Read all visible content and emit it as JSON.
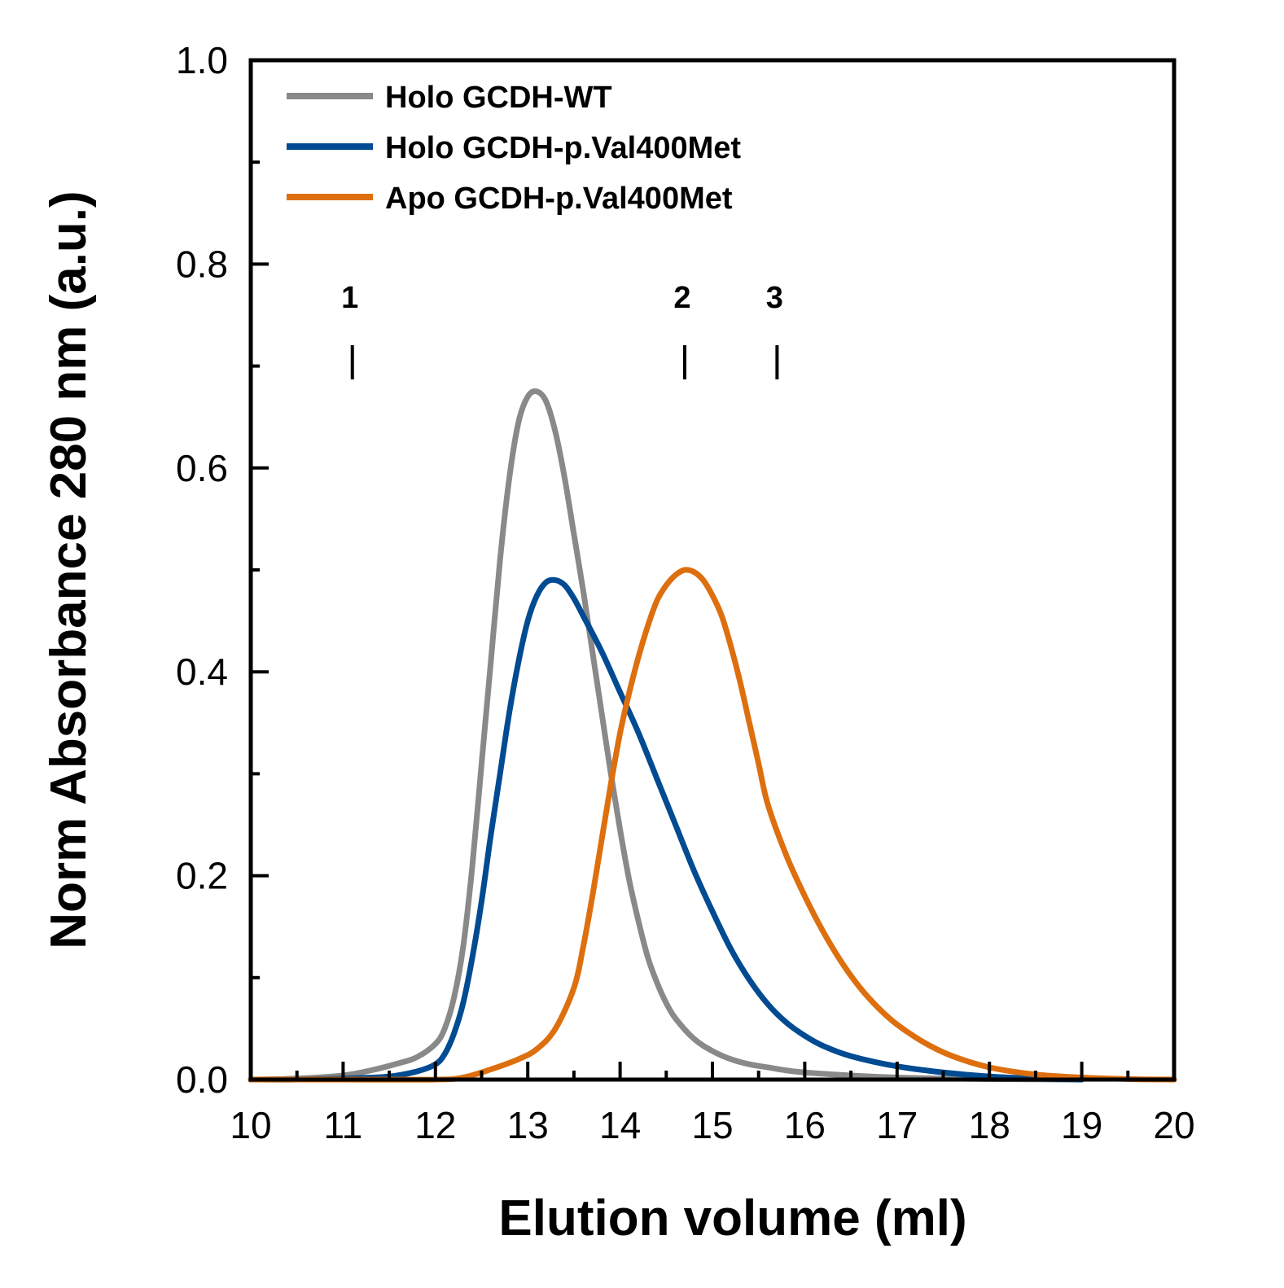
{
  "chart_data": {
    "type": "line",
    "title": "",
    "xlabel": "Elution volume (ml)",
    "ylabel": "Norm Absorbance 280 nm (a.u.)",
    "xlim": [
      10,
      20
    ],
    "ylim": [
      0.0,
      1.0
    ],
    "x_ticks": [
      10,
      11,
      12,
      13,
      14,
      15,
      16,
      17,
      18,
      19,
      20
    ],
    "x_tick_labels": [
      "10",
      "11",
      "12",
      "13",
      "14",
      "15",
      "16",
      "17",
      "18",
      "19",
      "20"
    ],
    "y_ticks": [
      0.0,
      0.2,
      0.4,
      0.6,
      0.8,
      1.0
    ],
    "y_tick_labels": [
      "0.0",
      "0.2",
      "0.4",
      "0.6",
      "0.8",
      "1.0"
    ],
    "legend_position": "top-left",
    "markers": [
      {
        "label": "1",
        "x": 11.1
      },
      {
        "label": "2",
        "x": 14.7
      },
      {
        "label": "3",
        "x": 15.7
      }
    ],
    "series": [
      {
        "name": "Holo GCDH-WT",
        "color": "#898989",
        "x": [
          10,
          10.5,
          11,
          11.3,
          11.6,
          11.8,
          12.0,
          12.1,
          12.2,
          12.3,
          12.4,
          12.5,
          12.6,
          12.7,
          12.8,
          12.9,
          13.0,
          13.1,
          13.2,
          13.3,
          13.4,
          13.5,
          13.6,
          13.7,
          13.8,
          13.9,
          14.0,
          14.1,
          14.2,
          14.3,
          14.4,
          14.5,
          14.6,
          14.8,
          15.0,
          15.2,
          15.4,
          15.6,
          15.8,
          16.0,
          16.5,
          17.0,
          17.5,
          18.0,
          18.5,
          19.0
        ],
        "values": [
          0.0,
          0.001,
          0.004,
          0.009,
          0.016,
          0.022,
          0.035,
          0.05,
          0.08,
          0.13,
          0.21,
          0.31,
          0.41,
          0.51,
          0.59,
          0.645,
          0.67,
          0.675,
          0.665,
          0.635,
          0.59,
          0.535,
          0.48,
          0.42,
          0.36,
          0.3,
          0.245,
          0.195,
          0.155,
          0.12,
          0.095,
          0.075,
          0.06,
          0.04,
          0.028,
          0.02,
          0.015,
          0.012,
          0.009,
          0.007,
          0.004,
          0.002,
          0.001,
          0.0005,
          0.0002,
          0.0
        ]
      },
      {
        "name": "Holo GCDH-p.Val400Met",
        "color": "#004b91",
        "x": [
          10,
          10.5,
          11,
          11.5,
          11.8,
          12.0,
          12.1,
          12.2,
          12.3,
          12.4,
          12.5,
          12.6,
          12.7,
          12.8,
          12.9,
          13.0,
          13.1,
          13.2,
          13.3,
          13.4,
          13.5,
          13.6,
          13.8,
          14.0,
          14.2,
          14.4,
          14.6,
          14.8,
          15.0,
          15.2,
          15.4,
          15.6,
          15.8,
          16.0,
          16.2,
          16.5,
          17.0,
          17.5,
          18.0,
          18.5,
          19.0
        ],
        "values": [
          0.0,
          0.0,
          0.001,
          0.003,
          0.008,
          0.015,
          0.025,
          0.045,
          0.075,
          0.12,
          0.175,
          0.24,
          0.3,
          0.36,
          0.41,
          0.45,
          0.475,
          0.488,
          0.49,
          0.485,
          0.472,
          0.455,
          0.42,
          0.38,
          0.34,
          0.295,
          0.25,
          0.205,
          0.165,
          0.128,
          0.098,
          0.074,
          0.056,
          0.043,
          0.033,
          0.023,
          0.013,
          0.007,
          0.003,
          0.001,
          0.0
        ]
      },
      {
        "name": "Apo GCDH-p.Val400Met",
        "color": "#dd6f0f",
        "x": [
          10,
          11,
          12,
          12.3,
          12.6,
          12.9,
          13.1,
          13.3,
          13.5,
          13.6,
          13.7,
          13.8,
          13.9,
          14.0,
          14.1,
          14.2,
          14.3,
          14.4,
          14.5,
          14.6,
          14.7,
          14.8,
          14.9,
          15.0,
          15.1,
          15.2,
          15.3,
          15.4,
          15.5,
          15.6,
          15.8,
          16.0,
          16.2,
          16.4,
          16.6,
          16.8,
          17.0,
          17.3,
          17.6,
          18.0,
          18.5,
          19.0,
          19.5,
          20.0
        ],
        "values": [
          0.0,
          0.0,
          0.0,
          0.002,
          0.01,
          0.02,
          0.03,
          0.05,
          0.09,
          0.13,
          0.18,
          0.235,
          0.29,
          0.34,
          0.38,
          0.415,
          0.445,
          0.47,
          0.485,
          0.495,
          0.5,
          0.498,
          0.49,
          0.475,
          0.455,
          0.425,
          0.39,
          0.35,
          0.31,
          0.27,
          0.22,
          0.18,
          0.145,
          0.115,
          0.09,
          0.07,
          0.054,
          0.036,
          0.023,
          0.012,
          0.005,
          0.002,
          0.0005,
          0.0
        ]
      }
    ]
  }
}
